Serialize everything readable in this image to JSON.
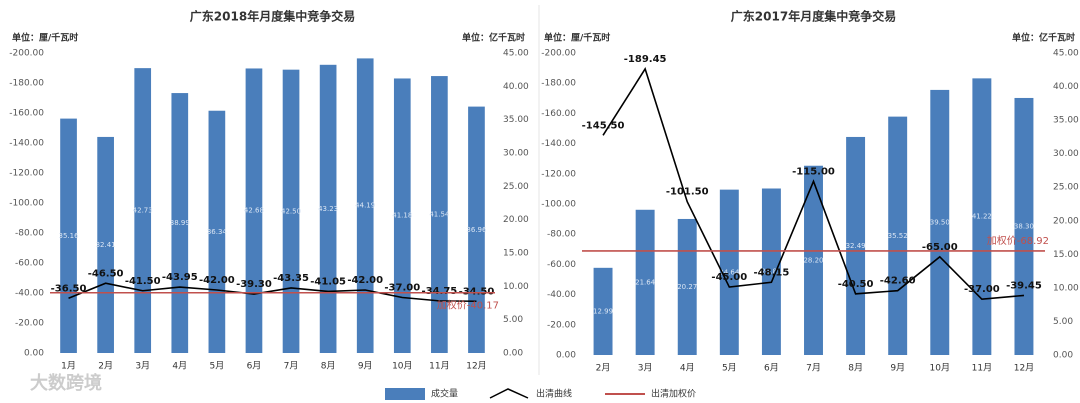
{
  "watermark": "大数跨境",
  "chart_data": [
    {
      "type": "combo",
      "title": "广东2018年月度集中竞争交易",
      "y_unit": "单位：厘/千瓦时",
      "y2_unit": "单位：亿千瓦时",
      "categories": [
        "1月",
        "2月",
        "3月",
        "4月",
        "5月",
        "6月",
        "7月",
        "8月",
        "9月",
        "10月",
        "11月",
        "12月"
      ],
      "series": [
        {
          "name": "成交量",
          "color": "#4a7ebb",
          "axis": "y2",
          "values": [
            35.16,
            32.41,
            42.73,
            38.99,
            36.34,
            42.68,
            42.5,
            43.23,
            44.19,
            41.18,
            41.54,
            36.96
          ],
          "value_labels": [
            "35.16",
            "32.41",
            "42.73",
            "38.99",
            "36.34",
            "42.68",
            "42.50",
            "43.23",
            "44.19",
            "41.18",
            "41.54",
            "36.96"
          ]
        },
        {
          "name": "出清曲线",
          "color": "#000000",
          "values": [
            -36.5,
            -46.5,
            -41.5,
            -43.95,
            -42,
            -39.3,
            -43.35,
            -41.05,
            -42,
            -37,
            -34.75,
            -34.5
          ],
          "value_labels": [
            "-36.50",
            "-46.50",
            "-41.50",
            "-43.95",
            "-42.00",
            "-39.30",
            "-43.35",
            "-41.05",
            "-42.00",
            "-37.00",
            "-34.75",
            "-34.50"
          ]
        }
      ],
      "reference_line": {
        "name": "出清加权价",
        "value": -40.17,
        "label": "加权价-40.17",
        "color": "#c0504d"
      },
      "ylim": [
        0,
        -200
      ],
      "yticks": [
        {
          "value": 0,
          "label": "0.00"
        },
        {
          "value": -20,
          "label": "-20.00"
        },
        {
          "value": -40,
          "label": "-40.00"
        },
        {
          "value": -60,
          "label": "-60.00"
        },
        {
          "value": -80,
          "label": "-80.00"
        },
        {
          "value": -100,
          "label": "-100.00"
        },
        {
          "value": -120,
          "label": "-120.00"
        },
        {
          "value": -140,
          "label": "-140.00"
        },
        {
          "value": -160,
          "label": "-160.00"
        },
        {
          "value": -180,
          "label": "-180.00"
        },
        {
          "value": -200,
          "label": "-200.00"
        }
      ],
      "y2lim": [
        0,
        45
      ],
      "y2ticks": [
        {
          "value": 0,
          "label": "0.00"
        },
        {
          "value": 5,
          "label": "5.00"
        },
        {
          "value": 10,
          "label": "10.00"
        },
        {
          "value": 15,
          "label": "15.00"
        },
        {
          "value": 20,
          "label": "20.00"
        },
        {
          "value": 25,
          "label": "25.00"
        },
        {
          "value": 30,
          "label": "30.00"
        },
        {
          "value": 35,
          "label": "35.00"
        },
        {
          "value": 40,
          "label": "40.00"
        },
        {
          "value": 45,
          "label": "45.00"
        }
      ]
    },
    {
      "type": "combo",
      "title": "广东2017年月度集中竞争交易",
      "y_unit": "单位：厘/千瓦时",
      "y2_unit": "单位：亿千瓦时",
      "categories": [
        "2月",
        "3月",
        "4月",
        "5月",
        "6月",
        "7月",
        "8月",
        "9月",
        "10月",
        "11月",
        "12月"
      ],
      "series": [
        {
          "name": "成交量",
          "color": "#4a7ebb",
          "axis": "y2",
          "values": [
            12.99,
            21.64,
            20.27,
            24.64,
            24.81,
            28.2,
            32.49,
            35.52,
            39.5,
            41.22,
            38.3
          ],
          "value_labels": [
            "12.99",
            "21.64",
            "20.27",
            "24.64",
            "24.81",
            "28.20",
            "32.49",
            "35.52",
            "39.50",
            "41.22",
            "38.30"
          ]
        },
        {
          "name": "出清曲线",
          "color": "#000000",
          "values": [
            -145.5,
            -189.45,
            -101.5,
            -45,
            -48.15,
            -115,
            -40.5,
            -42.6,
            -65,
            -37,
            -39.45
          ],
          "value_labels": [
            "-145.50",
            "-189.45",
            "-101.50",
            "-45.00",
            "-48.15",
            "-115.00",
            "-40.50",
            "-42.60",
            "-65.00",
            "-37.00",
            "-39.45"
          ]
        }
      ],
      "reference_line": {
        "name": "出清加权价",
        "value": -68.92,
        "label": "加权价-68.92",
        "color": "#c0504d"
      },
      "ylim": [
        0,
        -200
      ],
      "yticks": [
        {
          "value": 0,
          "label": "0.00"
        },
        {
          "value": -20,
          "label": "-20.00"
        },
        {
          "value": -40,
          "label": "-40.00"
        },
        {
          "value": -60,
          "label": "-60.00"
        },
        {
          "value": -80,
          "label": "-80.00"
        },
        {
          "value": -100,
          "label": "-100.00"
        },
        {
          "value": -120,
          "label": "-120.00"
        },
        {
          "value": -140,
          "label": "-140.00"
        },
        {
          "value": -160,
          "label": "-160.00"
        },
        {
          "value": -180,
          "label": "-180.00"
        },
        {
          "value": -200,
          "label": "-200.00"
        }
      ],
      "y2lim": [
        0,
        45
      ],
      "y2ticks": [
        {
          "value": 0,
          "label": "0.00"
        },
        {
          "value": 5,
          "label": "5.00"
        },
        {
          "value": 10,
          "label": "10.00"
        },
        {
          "value": 15,
          "label": "15.00"
        },
        {
          "value": 20,
          "label": "20.00"
        },
        {
          "value": 25,
          "label": "25.00"
        },
        {
          "value": 30,
          "label": "30.00"
        },
        {
          "value": 35,
          "label": "35.00"
        },
        {
          "value": 40,
          "label": "40.00"
        },
        {
          "value": 45,
          "label": "45.00"
        }
      ]
    }
  ]
}
